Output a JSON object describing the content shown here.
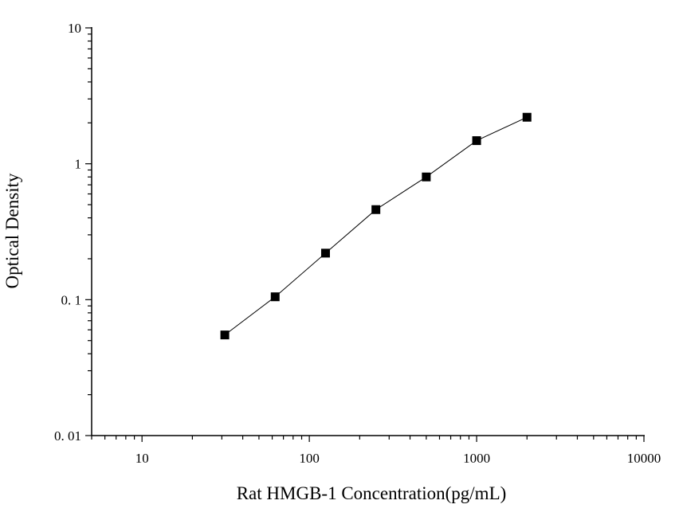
{
  "chart_data": {
    "type": "scatter",
    "title": "",
    "xlabel": "Rat HMGB-1 Concentration(pg/mL)",
    "ylabel": "Optical Density",
    "x_scale": "log",
    "y_scale": "log",
    "xlim": [
      5,
      10000
    ],
    "ylim": [
      0.01,
      10
    ],
    "x_ticks": [
      10,
      100,
      1000,
      10000
    ],
    "x_tick_labels": [
      "10",
      "100",
      "1000",
      "10000"
    ],
    "y_ticks": [
      0.01,
      0.1,
      1,
      10
    ],
    "y_tick_labels": [
      "0. 01",
      "0. 1",
      "1",
      "10"
    ],
    "grid": false,
    "legend": "none",
    "marker": "square",
    "fit_line": true,
    "colors": {
      "marker": "#000000",
      "line": "#000000",
      "axis": "#000000"
    },
    "series": [
      {
        "x": [
          31.25,
          62.5,
          125,
          250,
          500,
          1000,
          2000
        ],
        "y": [
          0.055,
          0.105,
          0.22,
          0.46,
          0.8,
          1.48,
          2.2
        ]
      }
    ]
  }
}
